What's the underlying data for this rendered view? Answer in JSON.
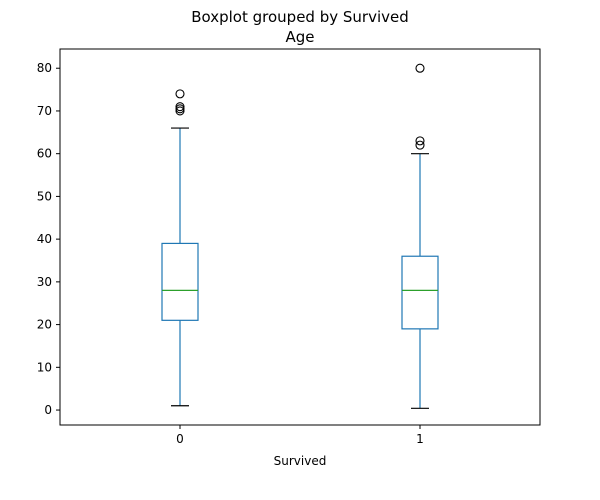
{
  "chart_data": {
    "type": "box",
    "title": "Boxplot grouped by Survived",
    "subtitle": "Age",
    "xlabel": "Survived",
    "ylabel": "",
    "ylim": [
      -3.5,
      84.5
    ],
    "yticks": [
      0,
      10,
      20,
      30,
      40,
      50,
      60,
      70,
      80
    ],
    "ytick_labels": [
      "0",
      "10",
      "20",
      "30",
      "40",
      "50",
      "60",
      "70",
      "80"
    ],
    "categories": [
      "0",
      "1"
    ],
    "boxes": [
      {
        "category": "0",
        "whisker_low": 1,
        "q1": 21,
        "median": 28,
        "q3": 39,
        "whisker_high": 66,
        "outliers": [
          70,
          70.5,
          71,
          74
        ]
      },
      {
        "category": "1",
        "whisker_low": 0.4,
        "q1": 19,
        "median": 28,
        "q3": 36,
        "whisker_high": 60,
        "outliers": [
          62,
          63,
          80
        ]
      }
    ],
    "grid": false,
    "colors": {
      "box": "#1f77b4",
      "median": "#2ca02c",
      "whisker": "#1f77b4",
      "outlier": "#000000"
    }
  }
}
